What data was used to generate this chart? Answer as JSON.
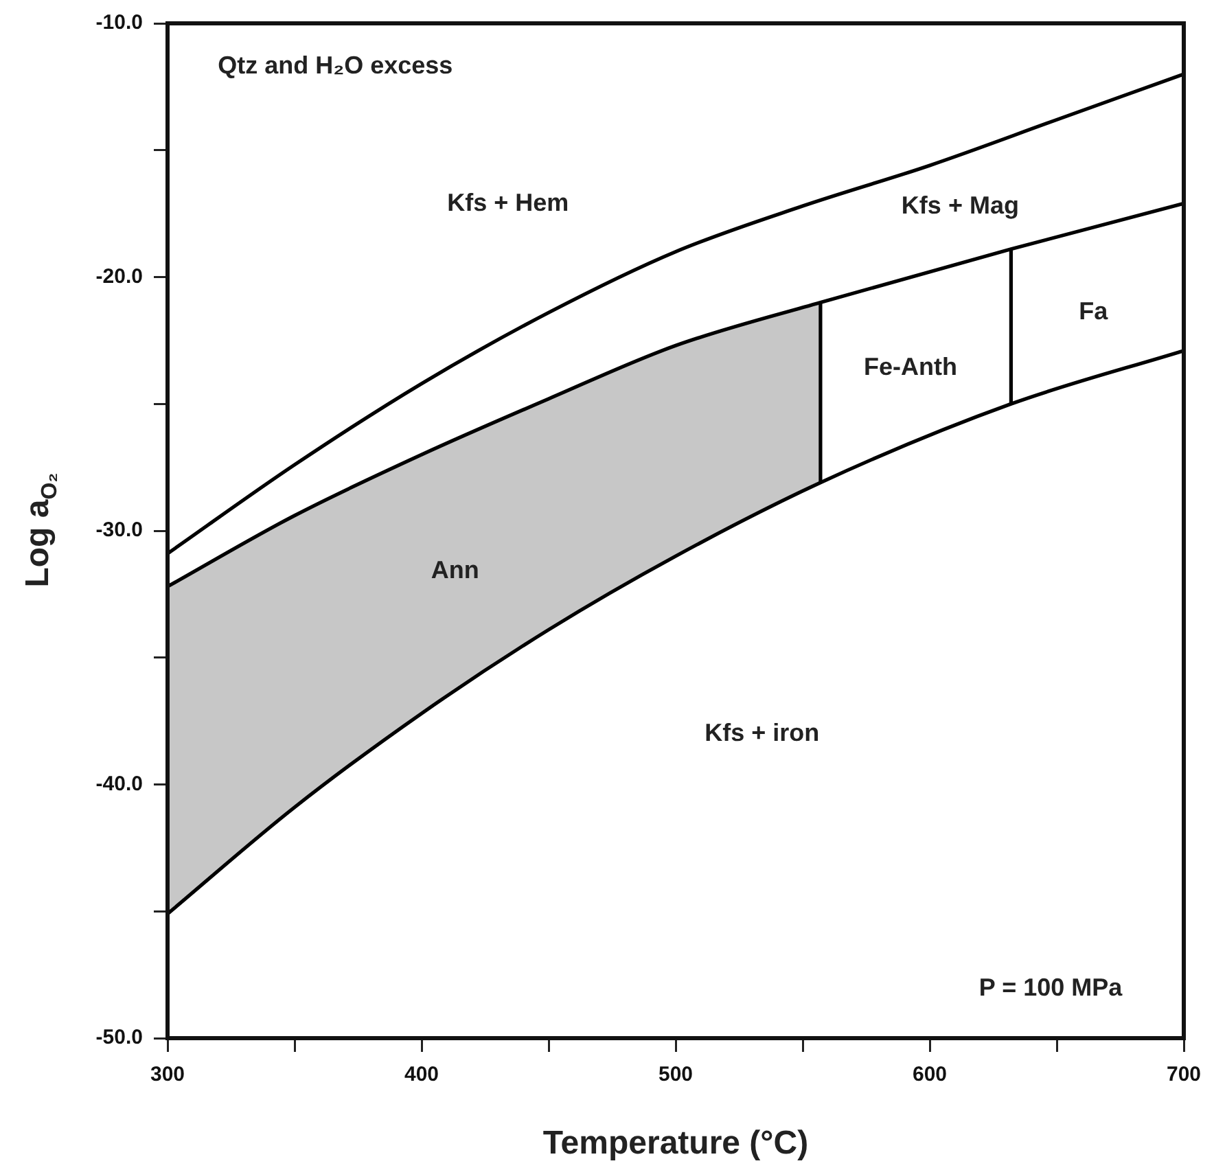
{
  "chart_data": {
    "type": "line",
    "xlabel": "Temperature (°C)",
    "ylabel": "Log a$_{O₂}$",
    "xlim": [
      300,
      700
    ],
    "xticks": [
      300,
      {
        "value": 350,
        "label": null
      },
      400,
      {
        "value": 450,
        "label": null
      },
      500,
      {
        "value": 550,
        "label": null
      },
      600,
      {
        "value": 650,
        "label": null
      },
      700
    ],
    "ylim": [
      -50,
      -10
    ],
    "yticks": [
      {
        "value": -50,
        "label": "-50.0"
      },
      {
        "value": -45,
        "label": null
      },
      {
        "value": -40,
        "label": "-40.0"
      },
      {
        "value": -35,
        "label": null
      },
      {
        "value": -30,
        "label": "-30.0"
      },
      {
        "value": -25,
        "label": null
      },
      {
        "value": -20,
        "label": "-20.0"
      },
      {
        "value": -15,
        "label": null
      },
      {
        "value": -10,
        "label": "-10.0"
      }
    ],
    "grid": false,
    "legend": false,
    "marker": "none",
    "line_style": "solid",
    "series": [
      {
        "color": "#000000",
        "x": [
          300,
          350,
          400,
          450,
          500,
          550,
          600,
          650,
          700
        ],
        "values": [
          -30.9,
          -27.4,
          -24.2,
          -21.4,
          -19.0,
          -17.2,
          -15.6,
          -13.8,
          -12.0
        ]
      },
      {
        "color": "#000000",
        "x": [
          300,
          350,
          400,
          450,
          500,
          557,
          632,
          700
        ],
        "values": [
          -32.2,
          -29.4,
          -27.0,
          -24.8,
          -22.7,
          -21.0,
          -18.9,
          -17.1
        ],
        "lower": [
          -45.1,
          -40.9,
          -37.2,
          -33.9,
          -31.0,
          -28.1,
          null,
          null
        ],
        "upper": [
          -32.2,
          -29.4,
          -27.0,
          -24.8,
          -22.7,
          -21.0,
          null,
          null
        ]
      },
      {
        "color": "#000000",
        "x": [
          300,
          350,
          400,
          450,
          500,
          557,
          632,
          700
        ],
        "values": [
          -45.1,
          -40.9,
          -37.2,
          -33.9,
          -31.0,
          -28.1,
          -25.0,
          -22.9
        ]
      },
      {
        "color": "#000000",
        "x": [
          557,
          557
        ],
        "values": [
          -28.1,
          -21.0
        ]
      },
      {
        "color": "#000000",
        "x": [
          632,
          632
        ],
        "values": [
          -25.0,
          -18.9
        ]
      }
    ],
    "annotations": [
      "Qtz and H₂O excess",
      "P = 100 MPa",
      "Kfs + Hem",
      "Kfs + Mag",
      "Fe-Anth",
      "Fa",
      "Ann",
      "Kfs + iron"
    ]
  }
}
